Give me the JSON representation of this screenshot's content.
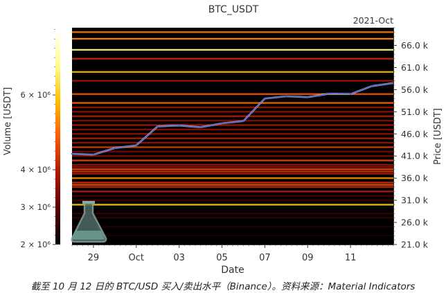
{
  "chart_data": {
    "type": "heatmap",
    "title": "BTC_USDT",
    "period_label": "2021-Oct",
    "xlabel": "Date",
    "ylabel_left": "Volume [USDT]",
    "ylabel_right": "Price [USDT]",
    "x_ticks": [
      "29",
      "Oct",
      "03",
      "05",
      "07",
      "09",
      "11"
    ],
    "price_ticks": [
      {
        "value": 21000,
        "label": "21.0 k"
      },
      {
        "value": 26000,
        "label": "26.0 k"
      },
      {
        "value": 31000,
        "label": "31.0 k"
      },
      {
        "value": 36000,
        "label": "36.0 k"
      },
      {
        "value": 41000,
        "label": "41.0 k"
      },
      {
        "value": 46000,
        "label": "46.0 k"
      },
      {
        "value": 51000,
        "label": "51.0 k"
      },
      {
        "value": 56000,
        "label": "56.0 k"
      },
      {
        "value": 61000,
        "label": "61.0 k"
      },
      {
        "value": 66000,
        "label": "66.0 k"
      }
    ],
    "price_range": [
      21000,
      70000
    ],
    "volume_colorbar": {
      "range": [
        2000000,
        7800000
      ],
      "ticks": [
        {
          "value": 2000000,
          "label": "2 × 10⁶"
        },
        {
          "value": 3000000,
          "label": "3 × 10⁶"
        },
        {
          "value": 4000000,
          "label": "4 × 10⁶"
        },
        {
          "value": 6000000,
          "label": "6 × 10⁶"
        }
      ],
      "colors": [
        "#000000",
        "#5a0000",
        "#b01800",
        "#ff5a00",
        "#ffc000",
        "#ffff90",
        "#ffffff"
      ]
    },
    "price_series": [
      {
        "date": "2021-09-28",
        "price": 41500
      },
      {
        "date": "2021-09-29",
        "price": 41300
      },
      {
        "date": "2021-09-30",
        "price": 42800
      },
      {
        "date": "2021-10-01",
        "price": 43400
      },
      {
        "date": "2021-10-02",
        "price": 47700
      },
      {
        "date": "2021-10-03",
        "price": 47900
      },
      {
        "date": "2021-10-04",
        "price": 47500
      },
      {
        "date": "2021-10-05",
        "price": 48400
      },
      {
        "date": "2021-10-06",
        "price": 48900
      },
      {
        "date": "2021-10-07",
        "price": 54000
      },
      {
        "date": "2021-10-08",
        "price": 54500
      },
      {
        "date": "2021-10-09",
        "price": 54300
      },
      {
        "date": "2021-10-10",
        "price": 55100
      },
      {
        "date": "2021-10-11",
        "price": 55000
      },
      {
        "date": "2021-10-12",
        "price": 56800
      },
      {
        "date": "2021-10-13",
        "price": 57500
      }
    ],
    "x_tick_dates": [
      "2021-09-29",
      "2021-10-01",
      "2021-10-03",
      "2021-10-05",
      "2021-10-07",
      "2021-10-09",
      "2021-10-11"
    ],
    "x_range": [
      "2021-09-28",
      "2021-10-13"
    ],
    "liquidity_bands": [
      {
        "price": 69000,
        "volume": 5200000
      },
      {
        "price": 67500,
        "volume": 5400000
      },
      {
        "price": 65000,
        "volume": 6800000
      },
      {
        "price": 63000,
        "volume": 4200000
      },
      {
        "price": 60000,
        "volume": 5800000
      },
      {
        "price": 58000,
        "volume": 3800000
      },
      {
        "price": 55000,
        "volume": 4800000
      },
      {
        "price": 53000,
        "volume": 5000000
      },
      {
        "price": 52000,
        "volume": 3800000
      },
      {
        "price": 51000,
        "volume": 3600000
      },
      {
        "price": 50000,
        "volume": 4000000
      },
      {
        "price": 49000,
        "volume": 3500000
      },
      {
        "price": 48000,
        "volume": 3900000
      },
      {
        "price": 47000,
        "volume": 3600000
      },
      {
        "price": 46000,
        "volume": 3700000
      },
      {
        "price": 45000,
        "volume": 4000000
      },
      {
        "price": 44000,
        "volume": 3700000
      },
      {
        "price": 43000,
        "volume": 4500000
      },
      {
        "price": 42000,
        "volume": 3300000
      },
      {
        "price": 41000,
        "volume": 3500000
      },
      {
        "price": 40000,
        "volume": 4600000
      },
      {
        "price": 39000,
        "volume": 3800000
      },
      {
        "price": 38500,
        "volume": 3600000
      },
      {
        "price": 38000,
        "volume": 4700000
      },
      {
        "price": 37500,
        "volume": 4300000
      },
      {
        "price": 37000,
        "volume": 3900000
      },
      {
        "price": 36000,
        "volume": 5400000
      },
      {
        "price": 35000,
        "volume": 4300000
      },
      {
        "price": 34500,
        "volume": 4700000
      },
      {
        "price": 34000,
        "volume": 4200000
      },
      {
        "price": 33000,
        "volume": 4000000
      },
      {
        "price": 32000,
        "volume": 2900000
      },
      {
        "price": 31000,
        "volume": 2800000
      },
      {
        "price": 30000,
        "volume": 6000000
      },
      {
        "price": 28000,
        "volume": 2700000
      },
      {
        "price": 27000,
        "volume": 2600000
      },
      {
        "price": 25000,
        "volume": 2400000
      },
      {
        "price": 23000,
        "volume": 2300000
      }
    ]
  },
  "caption": "截至 10 月 12 日的 BTC/USD 买入/卖出水平（Binance）。资料来源：Material Indicators"
}
